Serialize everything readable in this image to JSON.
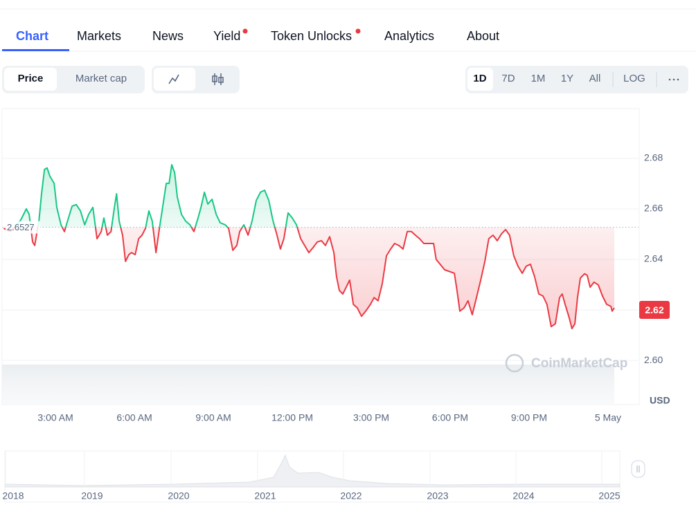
{
  "tabs": [
    "Chart",
    "Markets",
    "News",
    "Yield",
    "Token Unlocks",
    "Analytics",
    "About"
  ],
  "view_toggle": [
    "Price",
    "Market cap"
  ],
  "ranges": [
    "1D",
    "7D",
    "1M",
    "1Y",
    "All",
    "LOG"
  ],
  "chart_data": {
    "type": "line",
    "x": [
      1.03,
      1.29,
      1.68,
      1.89,
      2.0,
      2.13,
      2.21,
      2.37,
      2.47,
      2.58,
      2.68,
      2.79,
      2.95,
      3.05,
      3.21,
      3.34,
      3.47,
      3.63,
      3.79,
      3.95,
      4.11,
      4.26,
      4.42,
      4.58,
      4.74,
      4.84,
      4.97,
      5.11,
      5.24,
      5.32,
      5.42,
      5.55,
      5.66,
      5.79,
      5.89,
      6.03,
      6.16,
      6.29,
      6.42,
      6.55,
      6.68,
      6.82,
      6.95,
      7.11,
      7.21,
      7.32,
      7.42,
      7.53,
      7.63,
      7.79,
      7.95,
      8.11,
      8.26,
      8.42,
      8.53,
      8.66,
      8.79,
      8.95,
      9.11,
      9.26,
      9.45,
      9.58,
      9.74,
      9.89,
      10.0,
      10.16,
      10.32,
      10.47,
      10.63,
      10.79,
      10.95,
      11.11,
      11.26,
      11.42,
      11.55,
      11.68,
      11.84,
      12.0,
      12.16,
      12.32,
      12.47,
      12.63,
      12.79,
      12.95,
      13.11,
      13.26,
      13.42,
      13.58,
      13.68,
      13.79,
      13.92,
      14.05,
      14.18,
      14.32,
      14.47,
      14.63,
      14.79,
      14.97,
      15.11,
      15.26,
      15.42,
      15.58,
      15.74,
      15.89,
      16.05,
      16.21,
      16.37,
      16.53,
      16.68,
      16.84,
      17.0,
      17.37,
      17.47,
      17.79,
      18.16,
      18.26,
      18.37,
      18.53,
      18.68,
      18.84,
      19.0,
      19.16,
      19.32,
      19.47,
      19.63,
      19.79,
      19.95,
      20.11,
      20.26,
      20.42,
      20.58,
      20.74,
      20.89,
      21.05,
      21.21,
      21.37,
      21.53,
      21.68,
      21.84,
      22.0,
      22.16,
      22.26,
      22.37,
      22.53,
      22.63,
      22.74,
      22.84,
      22.95,
      23.11,
      23.21,
      23.32,
      23.47,
      23.63,
      23.79,
      23.95,
      24.11,
      24.16,
      24.24
    ],
    "values": [
      2.6523,
      2.651,
      2.6556,
      2.66,
      2.6578,
      2.6469,
      2.6455,
      2.6551,
      2.666,
      2.6756,
      2.6762,
      2.6729,
      2.6701,
      2.6606,
      2.6537,
      2.651,
      2.6556,
      2.6611,
      2.6617,
      2.6592,
      2.6537,
      2.6578,
      2.6606,
      2.6482,
      2.651,
      2.6564,
      2.6496,
      2.651,
      2.6606,
      2.666,
      2.6551,
      2.6496,
      2.6392,
      2.6419,
      2.6427,
      2.6419,
      2.6482,
      2.6496,
      2.6523,
      2.6592,
      2.6551,
      2.6427,
      2.6523,
      2.6633,
      2.6701,
      2.6701,
      2.6775,
      2.6743,
      2.6647,
      2.6578,
      2.6551,
      2.6537,
      2.651,
      2.6564,
      2.6606,
      2.6666,
      2.6619,
      2.6638,
      2.6578,
      2.6545,
      2.6537,
      2.6523,
      2.6436,
      2.6455,
      2.651,
      2.6537,
      2.6496,
      2.6551,
      2.6633,
      2.6666,
      2.6674,
      2.6633,
      2.6556,
      2.6496,
      2.6441,
      2.6482,
      2.6584,
      2.6564,
      2.6537,
      2.6482,
      2.6455,
      2.6427,
      2.6447,
      2.6469,
      2.6474,
      2.6455,
      2.649,
      2.6427,
      2.6332,
      2.6277,
      2.6263,
      2.629,
      2.6318,
      2.6222,
      2.6208,
      2.6175,
      2.6195,
      2.6222,
      2.6249,
      2.6236,
      2.6304,
      2.6414,
      2.6441,
      2.6463,
      2.6455,
      2.6441,
      2.651,
      2.651,
      2.6496,
      2.6482,
      2.6463,
      2.6463,
      2.64,
      2.6359,
      2.6345,
      2.6277,
      2.6195,
      2.6208,
      2.6236,
      2.6181,
      2.6249,
      2.6318,
      2.6392,
      2.6482,
      2.6496,
      2.6474,
      2.6501,
      2.6518,
      2.6496,
      2.6414,
      2.6373,
      2.6345,
      2.6373,
      2.6381,
      2.6332,
      2.6263,
      2.6255,
      2.6222,
      2.6134,
      2.6145,
      2.6249,
      2.6263,
      2.6222,
      2.6167,
      2.6126,
      2.6145,
      2.6249,
      2.6326,
      2.6343,
      2.6337,
      2.629,
      2.631,
      2.6299,
      2.6255,
      2.6222,
      2.6214,
      2.6195,
      2.6208
    ],
    "reference": {
      "value": 2.6527,
      "label": "2.6527"
    },
    "current_price": 2.62,
    "up_color": "#16c784",
    "down_color": "#ea3943",
    "xlim": [
      0.97,
      25.16
    ],
    "xticks": [
      {
        "value": 3,
        "label": "3:00 AM"
      },
      {
        "value": 6,
        "label": "6:00 AM"
      },
      {
        "value": 9,
        "label": "9:00 AM"
      },
      {
        "value": 12,
        "label": "12:00 PM"
      },
      {
        "value": 15,
        "label": "3:00 PM"
      },
      {
        "value": 18,
        "label": "6:00 PM"
      },
      {
        "value": 21,
        "label": "9:00 PM"
      },
      {
        "value": 24,
        "label": "5 May"
      }
    ],
    "ylim": [
      2.5825,
      2.6997
    ],
    "yticks": [
      {
        "value": 2.6,
        "label": "2.60"
      },
      2.62,
      2.64,
      2.66,
      2.68
    ],
    "y_unit": "USD",
    "grid": true,
    "watermark": "CoinMarketCap"
  },
  "navigator": {
    "years": [
      "2018",
      "2019",
      "2020",
      "2021",
      "2022",
      "2023",
      "2024",
      "2025"
    ]
  }
}
